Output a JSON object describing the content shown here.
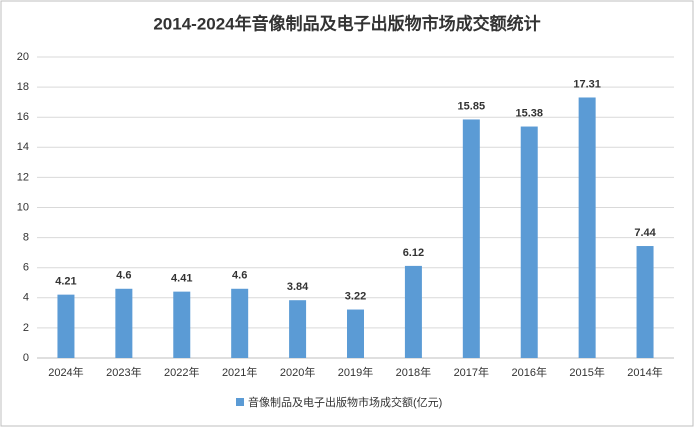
{
  "chart_data": {
    "type": "bar",
    "title": "2014-2024年音像制品及电子出版物市场成交额统计",
    "categories": [
      "2024年",
      "2023年",
      "2022年",
      "2021年",
      "2020年",
      "2019年",
      "2018年",
      "2017年",
      "2016年",
      "2015年",
      "2014年"
    ],
    "series": [
      {
        "name": "音像制品及电子出版物市场成交额(亿元)",
        "color": "#5b9bd5",
        "values": [
          4.21,
          4.6,
          4.41,
          4.6,
          3.84,
          3.22,
          6.12,
          15.85,
          15.38,
          17.31,
          7.44
        ]
      }
    ],
    "ylim": [
      0,
      20
    ],
    "yticks": [
      0,
      2,
      4,
      6,
      8,
      10,
      12,
      14,
      16,
      18,
      20
    ],
    "grid": true,
    "legend": "bottom"
  }
}
